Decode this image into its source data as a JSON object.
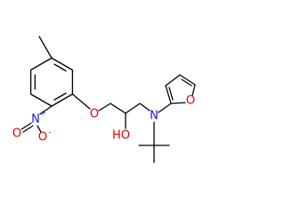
{
  "labels": [
    "O",
    "HO",
    "N",
    "O",
    "N",
    "+",
    "O",
    "O",
    "-"
  ]
}
